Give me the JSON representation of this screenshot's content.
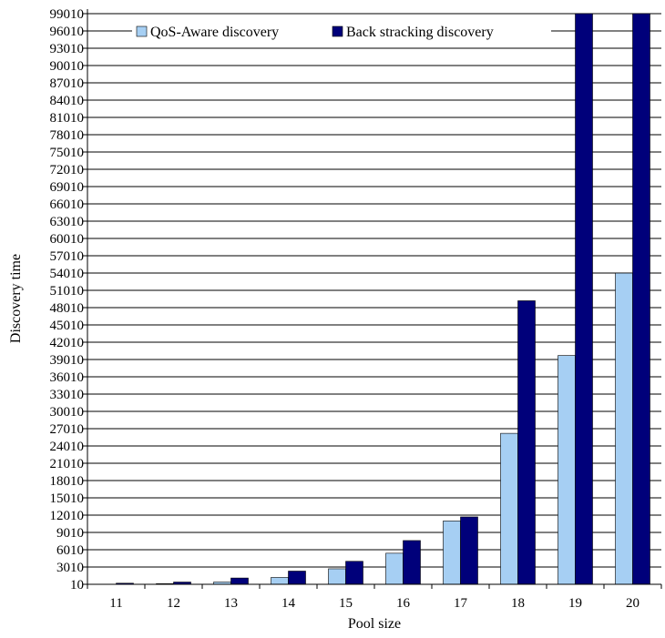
{
  "chart_data": {
    "type": "bar",
    "xlabel": "Pool size",
    "ylabel": "Discovery time",
    "categories": [
      "11",
      "12",
      "13",
      "14",
      "15",
      "16",
      "17",
      "18",
      "19",
      "20"
    ],
    "series": [
      {
        "name": "QoS-Aware discovery",
        "color": "#a6cff3",
        "values": [
          10,
          120,
          400,
          1200,
          2700,
          5400,
          11000,
          26200,
          39700,
          54000
        ]
      },
      {
        "name": "Back stracking discovery",
        "color": "#00007a",
        "values": [
          200,
          400,
          1100,
          2300,
          4000,
          7600,
          11700,
          49200,
          100000,
          100000
        ]
      }
    ],
    "y_ticks": [
      10,
      3010,
      6010,
      9010,
      12010,
      15010,
      18010,
      21010,
      24010,
      27010,
      30010,
      33010,
      36010,
      39010,
      42010,
      45010,
      48010,
      51010,
      54010,
      57010,
      60010,
      63010,
      66010,
      69010,
      72010,
      75010,
      78010,
      81010,
      84010,
      87010,
      90010,
      93010,
      96010,
      99010
    ],
    "y_axis_scale": "nonlinear (equal tick spacing, unequal tick values)",
    "grid": "horizontal",
    "legend_position": "top"
  }
}
